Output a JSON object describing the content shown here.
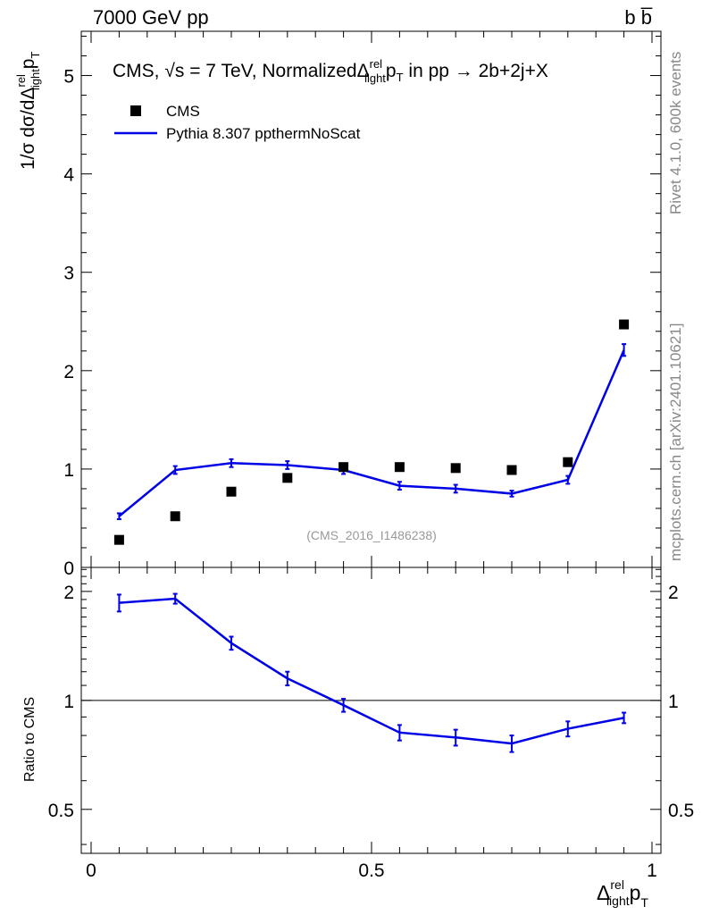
{
  "header": {
    "left": "7000 GeV pp",
    "right": "b b̅"
  },
  "plot": {
    "title_prefix": "CMS, ",
    "title_sqrt": "√s",
    "title_energy": " = 7 TeV, Normalized",
    "title_var": "Δ",
    "title_var_sup": "rel",
    "title_var_sub": "light",
    "title_p": "p",
    "title_T": "T",
    "title_suffix": " in pp →  2b+2j+X",
    "ylabel_main": "1/σ dσ/dΔ",
    "ylabel_sup": "rel",
    "ylabel_sub": "light",
    "ylabel_p": "p",
    "ylabel_T": "T",
    "ylabel_ratio": "Ratio to CMS",
    "xlabel_delta": "Δ",
    "xlabel_sup": "rel",
    "xlabel_sub": "light",
    "xlabel_p": "p",
    "xlabel_T": "T",
    "analysis_tag": "(CMS_2016_I1486238)",
    "side_rivet": "Rivet 4.1.0,  600k events",
    "side_mcplots": "mcplots.cern.ch [arXiv:2401.10621]"
  },
  "legend": {
    "data_label": "CMS",
    "mc_label": "Pythia 8.307 ppthermNoScat"
  },
  "colors": {
    "mc": "#0000e6",
    "data": "#000000",
    "side_text": "#888888"
  },
  "chart_data": {
    "type": "scatter",
    "x_range": [
      0,
      1
    ],
    "x_ticks": [
      0,
      0.5,
      1
    ],
    "x_tick_labels": [
      "0",
      "0.5",
      "1"
    ],
    "main": {
      "y_range": [
        0,
        5.45
      ],
      "y_ticks": [
        0,
        1,
        2,
        3,
        4,
        5
      ],
      "y_tick_labels": [
        "0",
        "1",
        "2",
        "3",
        "4",
        "5"
      ],
      "series": [
        {
          "name": "CMS",
          "style": "markers",
          "x": [
            0.05,
            0.15,
            0.25,
            0.35,
            0.45,
            0.55,
            0.65,
            0.75,
            0.85,
            0.95
          ],
          "y": [
            0.28,
            0.52,
            0.77,
            0.91,
            1.02,
            1.02,
            1.01,
            0.99,
            1.07,
            2.47
          ]
        },
        {
          "name": "Pythia 8.307 ppthermNoScat",
          "style": "line",
          "x": [
            0.05,
            0.15,
            0.25,
            0.35,
            0.45,
            0.55,
            0.65,
            0.75,
            0.85,
            0.95
          ],
          "y": [
            0.52,
            0.99,
            1.06,
            1.04,
            0.99,
            0.83,
            0.8,
            0.75,
            0.89,
            2.21
          ],
          "err": [
            0.03,
            0.04,
            0.04,
            0.04,
            0.04,
            0.04,
            0.04,
            0.03,
            0.04,
            0.06
          ]
        }
      ]
    },
    "ratio": {
      "y_range": [
        0.378,
        2.33
      ],
      "y_scale": "log",
      "y_ticks": [
        0.5,
        1,
        2
      ],
      "y_tick_labels": [
        "0.5",
        "1",
        "2"
      ],
      "series": [
        {
          "name": "Pythia 8.307 ppthermNoScat / CMS",
          "x": [
            0.05,
            0.15,
            0.25,
            0.35,
            0.45,
            0.55,
            0.65,
            0.75,
            0.85,
            0.95
          ],
          "y": [
            1.86,
            1.91,
            1.44,
            1.15,
            0.97,
            0.815,
            0.79,
            0.76,
            0.835,
            0.895
          ],
          "err": [
            0.1,
            0.06,
            0.06,
            0.05,
            0.04,
            0.04,
            0.04,
            0.04,
            0.04,
            0.03
          ]
        }
      ]
    }
  }
}
